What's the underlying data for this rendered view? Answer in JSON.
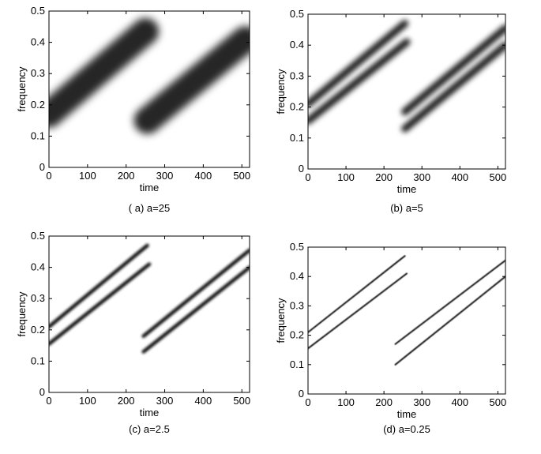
{
  "chart_data": [
    {
      "type": "spectrogram",
      "caption": "( a) a=25",
      "x_label": "time",
      "y_label": "frequency",
      "xlim": [
        0,
        520
      ],
      "ylim": [
        0,
        0.5
      ],
      "xticks": [
        0,
        100,
        200,
        300,
        400,
        500
      ],
      "yticks": [
        0,
        0.1,
        0.2,
        0.3,
        0.4,
        0.5
      ],
      "series": [
        {
          "x": [
            0,
            255
          ],
          "values": [
            0.17,
            0.44
          ]
        },
        {
          "x": [
            255,
            520
          ],
          "values": [
            0.15,
            0.42
          ]
        }
      ]
    },
    {
      "type": "spectrogram",
      "caption": "(b) a=5",
      "x_label": "time",
      "y_label": "frequency",
      "xlim": [
        0,
        520
      ],
      "ylim": [
        0,
        0.5
      ],
      "xticks": [
        0,
        100,
        200,
        300,
        400,
        500
      ],
      "yticks": [
        0,
        0.1,
        0.2,
        0.3,
        0.4,
        0.5
      ],
      "series": [
        {
          "x": [
            0,
            255
          ],
          "values": [
            0.21,
            0.47
          ]
        },
        {
          "x": [
            0,
            260
          ],
          "values": [
            0.155,
            0.41
          ]
        },
        {
          "x": [
            255,
            520
          ],
          "values": [
            0.185,
            0.455
          ]
        },
        {
          "x": [
            255,
            520
          ],
          "values": [
            0.13,
            0.4
          ]
        }
      ]
    },
    {
      "type": "spectrogram",
      "caption": "(c) a=2.5",
      "x_label": "time",
      "y_label": "frequency",
      "xlim": [
        0,
        520
      ],
      "ylim": [
        0,
        0.5
      ],
      "xticks": [
        0,
        100,
        200,
        300,
        400,
        500
      ],
      "yticks": [
        0,
        0.1,
        0.2,
        0.3,
        0.4,
        0.5
      ],
      "series": [
        {
          "x": [
            0,
            255
          ],
          "values": [
            0.21,
            0.47
          ]
        },
        {
          "x": [
            0,
            260
          ],
          "values": [
            0.155,
            0.41
          ]
        },
        {
          "x": [
            245,
            520
          ],
          "values": [
            0.18,
            0.455
          ]
        },
        {
          "x": [
            245,
            520
          ],
          "values": [
            0.13,
            0.4
          ]
        }
      ]
    },
    {
      "type": "spectrogram",
      "caption": "(d) a=0.25",
      "x_label": "time",
      "y_label": "frequency",
      "xlim": [
        0,
        520
      ],
      "ylim": [
        0,
        0.5
      ],
      "xticks": [
        0,
        100,
        200,
        300,
        400,
        500
      ],
      "yticks": [
        0,
        0.1,
        0.2,
        0.3,
        0.4,
        0.5
      ],
      "series": [
        {
          "x": [
            0,
            255
          ],
          "values": [
            0.21,
            0.47
          ]
        },
        {
          "x": [
            0,
            260
          ],
          "values": [
            0.155,
            0.41
          ]
        },
        {
          "x": [
            230,
            520
          ],
          "values": [
            0.17,
            0.455
          ]
        },
        {
          "x": [
            230,
            520
          ],
          "values": [
            0.1,
            0.4
          ]
        }
      ]
    }
  ]
}
